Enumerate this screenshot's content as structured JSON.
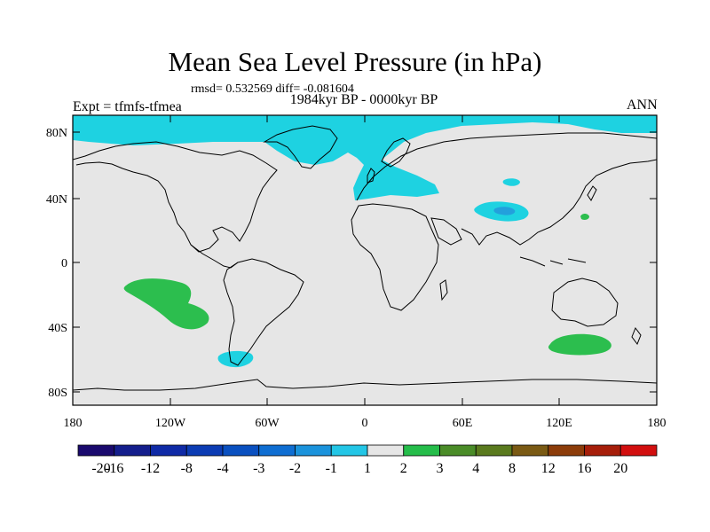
{
  "header": {
    "title": "Mean Sea Level Pressure (in hPa)",
    "stats": "rmsd= 0.532569 diff= -0.081604",
    "experiment": "Expt = tfmfs-tfmea",
    "period": "1984kyr BP - 0000kyr BP",
    "season": "ANN"
  },
  "map": {
    "lat_labels": [
      "80N",
      "40N",
      "0",
      "40S",
      "80S"
    ],
    "lon_labels": [
      "180",
      "120W",
      "60W",
      "0",
      "60E",
      "120E",
      "180"
    ]
  },
  "colorbar": {
    "labels": [
      "-20",
      "-16",
      "-12",
      "-8",
      "-4",
      "-3",
      "-2",
      "-1",
      "1",
      "2",
      "3",
      "4",
      "8",
      "12",
      "16",
      "20"
    ],
    "colors": [
      "#1a0a6e",
      "#141e8c",
      "#0f2aa6",
      "#0c3cb4",
      "#0a50c0",
      "#0f6ed2",
      "#1b93dc",
      "#23c6e6",
      "#e6e6e6",
      "#25bd4a",
      "#4a8c28",
      "#5a7a1e",
      "#7a5a14",
      "#8c3c0a",
      "#a61e0a",
      "#d20f0f"
    ]
  },
  "colors": {
    "background": "#e6e6e6",
    "neg_small": "#1ed2e1",
    "neg_medium": "#23a0dc",
    "pos_small": "#2cbe4e",
    "coast": "#000000"
  }
}
